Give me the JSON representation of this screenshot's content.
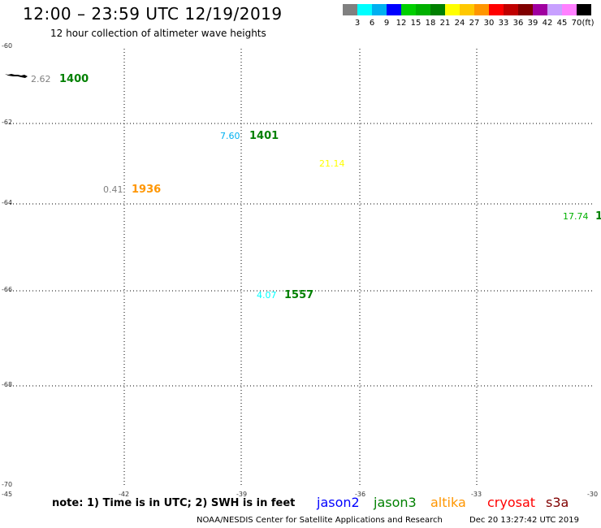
{
  "header": {
    "title": "12:00 – 23:59 UTC 12/19/2019",
    "subtitle": "12 hour collection of altimeter wave heights"
  },
  "colorbar": {
    "unit": "(ft)",
    "swatches": [
      "#808080",
      "#00ffff",
      "#00b0f0",
      "#0000ff",
      "#00d000",
      "#00b000",
      "#008000",
      "#ffff00",
      "#ffc800",
      "#ff9600",
      "#ff0000",
      "#c00000",
      "#800000",
      "#a000a0",
      "#c8a0ff",
      "#ff80ff",
      "#000000"
    ],
    "labels": [
      "3",
      "6",
      "9",
      "12",
      "15",
      "18",
      "21",
      "24",
      "27",
      "30",
      "33",
      "36",
      "39",
      "42",
      "45",
      "70"
    ]
  },
  "axes": {
    "y_ticks": [
      "-60",
      "-62",
      "-64",
      "-66",
      "-68",
      "-70"
    ],
    "x_ticks": [
      "-45",
      "-42",
      "-39",
      "-36",
      "-33",
      "-30"
    ]
  },
  "observations": [
    {
      "value": "2.62",
      "value_color": "#808080",
      "id": "1400",
      "id_color": "#008000"
    },
    {
      "value": "7.60",
      "value_color": "#00b0f0",
      "id": "1401",
      "id_color": "#008000"
    },
    {
      "value": "21.14",
      "value_color": "#ffff00",
      "id": "",
      "id_color": "#008000"
    },
    {
      "value": "0.41",
      "value_color": "#808080",
      "id": "1936",
      "id_color": "#ff9600"
    },
    {
      "value": "17.74",
      "value_color": "#00b000",
      "id": "1",
      "id_color": "#008000"
    },
    {
      "value": "4.07",
      "value_color": "#00ffff",
      "id": "1557",
      "id_color": "#008000"
    }
  ],
  "note": "note: 1) Time is in UTC; 2) SWH is in feet",
  "legend": [
    {
      "label": "jason2",
      "color": "#0000ff"
    },
    {
      "label": "jason3",
      "color": "#008000"
    },
    {
      "label": "altika",
      "color": "#ff9600"
    },
    {
      "label": "cryosat",
      "color": "#ff0000"
    },
    {
      "label": "s3a",
      "color": "#800000"
    }
  ],
  "footer": {
    "credit": "NOAA/NESDIS Center for Satellite Applications and Research",
    "timestamp": "Dec 20 13:27:42 UTC 2019"
  }
}
